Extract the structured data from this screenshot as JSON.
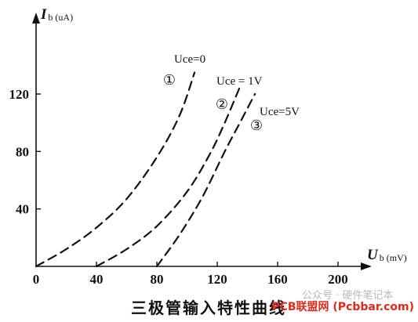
{
  "chart_data": {
    "type": "line",
    "title": "",
    "caption": "三极管输入特性曲线",
    "xlabel": {
      "symbol": "U",
      "subscript": "b",
      "unit": "(mV)"
    },
    "ylabel": {
      "symbol": "I",
      "subscript": "b",
      "unit": "(uA)"
    },
    "xlim": [
      0,
      220
    ],
    "ylim": [
      0,
      150
    ],
    "xticks": [
      0,
      40,
      80,
      120,
      160,
      200
    ],
    "yticks": [
      40,
      80,
      120
    ],
    "grid": false,
    "series": [
      {
        "name": "Uce=0",
        "marker": "①",
        "x": [
          0,
          20,
          40,
          60,
          80,
          95,
          105
        ],
        "y": [
          0,
          12,
          27,
          47,
          76,
          105,
          135
        ]
      },
      {
        "name": "Uce = 1V",
        "marker": "②",
        "x": [
          40,
          60,
          80,
          100,
          115,
          125,
          135
        ],
        "y": [
          0,
          12,
          28,
          52,
          78,
          100,
          125
        ]
      },
      {
        "name": "Uce=5V",
        "marker": "③",
        "x": [
          80,
          95,
          110,
          125,
          135,
          145
        ],
        "y": [
          0,
          22,
          48,
          80,
          100,
          120
        ]
      }
    ]
  },
  "watermark": {
    "text": "公众号 · 硬件笔记本",
    "site": "PCB联盟网 (Pcbbar.com)"
  }
}
